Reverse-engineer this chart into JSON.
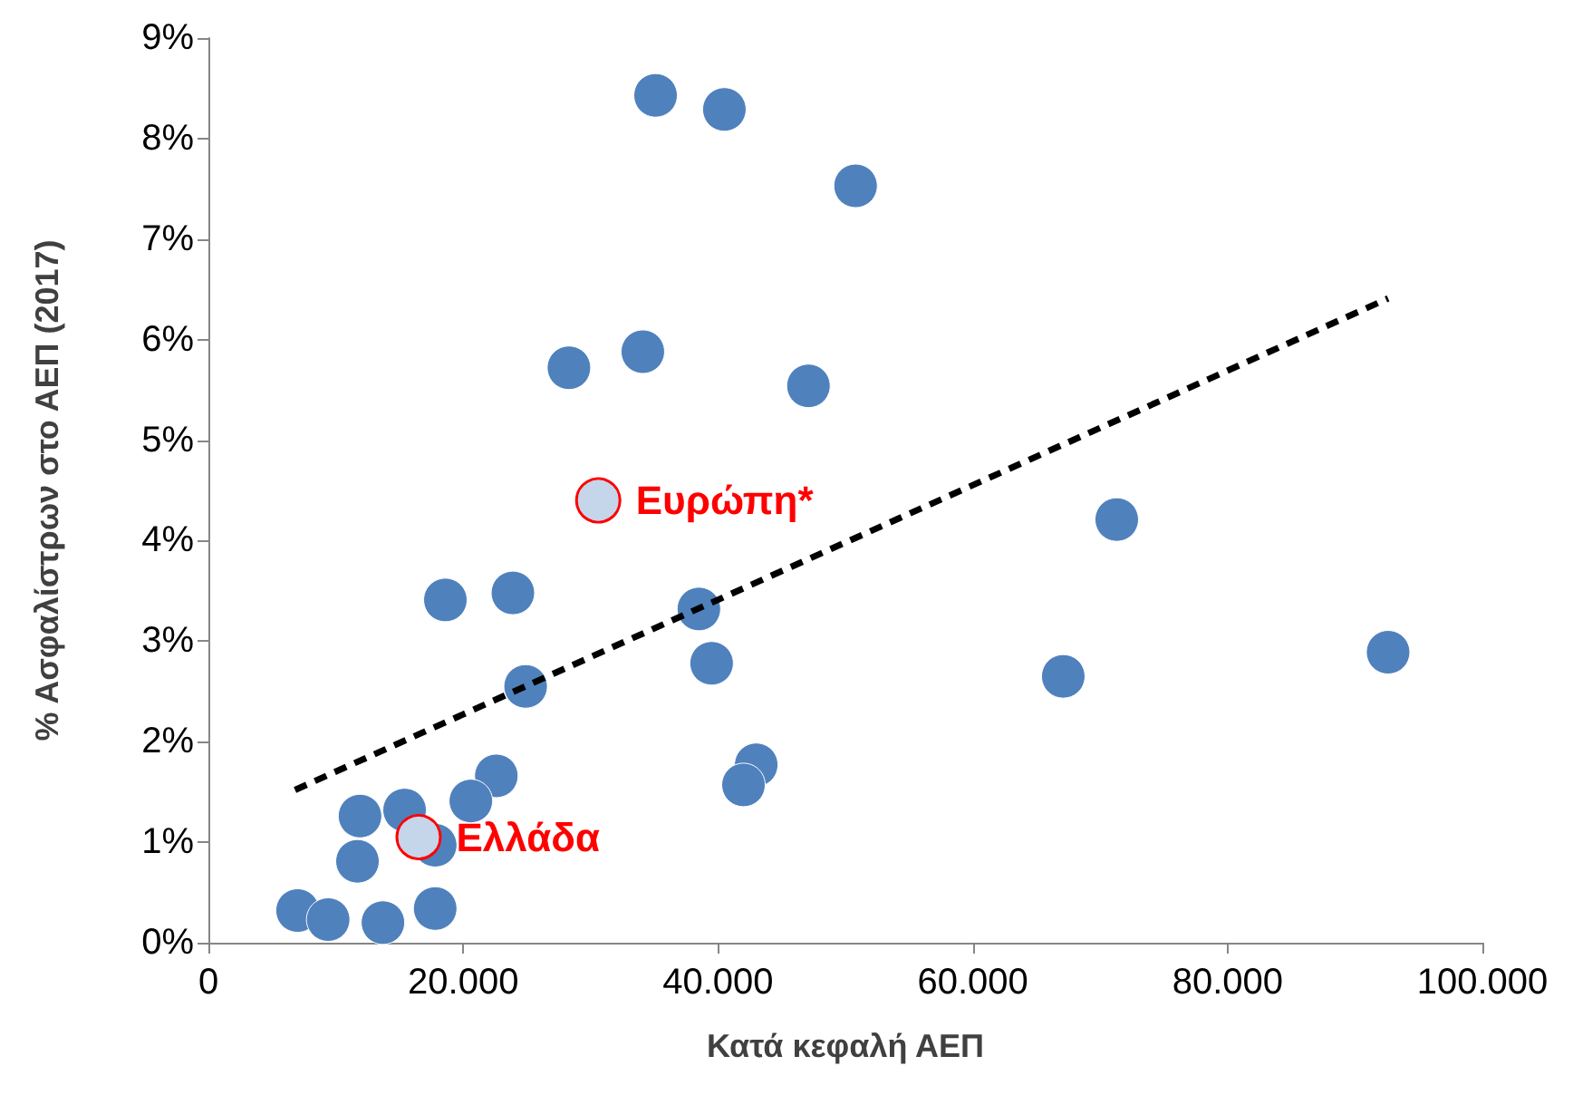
{
  "chart_data": {
    "type": "scatter",
    "xlabel": "Κατά κεφαλή ΑΕΠ",
    "ylabel": "% Ασφαλίστρων στο ΑΕΠ (2017)",
    "xlim": [
      0,
      100000
    ],
    "ylim": [
      0,
      9
    ],
    "xticks": [
      {
        "value": 0,
        "label": "0"
      },
      {
        "value": 20000,
        "label": "20.000"
      },
      {
        "value": 40000,
        "label": "40.000"
      },
      {
        "value": 60000,
        "label": "60.000"
      },
      {
        "value": 80000,
        "label": "80.000"
      },
      {
        "value": 100000,
        "label": "100.000"
      }
    ],
    "yticks": [
      {
        "value": 0,
        "label": "0%"
      },
      {
        "value": 1,
        "label": "1%"
      },
      {
        "value": 2,
        "label": "2%"
      },
      {
        "value": 3,
        "label": "3%"
      },
      {
        "value": 4,
        "label": "4%"
      },
      {
        "value": 5,
        "label": "5%"
      },
      {
        "value": 6,
        "label": "6%"
      },
      {
        "value": 7,
        "label": "7%"
      },
      {
        "value": 8,
        "label": "8%"
      },
      {
        "value": 9,
        "label": "9%"
      }
    ],
    "grid": false,
    "legend": false,
    "marker": "circle",
    "series": [
      {
        "color": "#4f81bd",
        "x": [
          35100,
          40500,
          50800,
          28300,
          34100,
          47100,
          71300,
          92600,
          67100,
          18600,
          23900,
          38500,
          39500,
          24900,
          43000,
          42000,
          22600,
          20600,
          11900,
          15400,
          17800,
          11700,
          7000,
          9400,
          13700,
          17800
        ],
        "values": [
          8.43,
          8.29,
          7.53,
          5.72,
          5.88,
          5.54,
          4.21,
          2.89,
          2.65,
          3.41,
          3.48,
          3.32,
          2.78,
          2.55,
          1.77,
          1.57,
          1.66,
          1.41,
          1.26,
          1.32,
          0.97,
          0.81,
          0.32,
          0.23,
          0.2,
          0.34
        ]
      },
      {
        "type": "line",
        "color": "#000000",
        "line_style": "dashed",
        "marker": "none",
        "x": [
          6800,
          92600
        ],
        "values": [
          1.52,
          6.41
        ]
      },
      {
        "name": "Ευρώπη*",
        "color": "#c5d5ea",
        "x": [
          30600
        ],
        "values": [
          4.4
        ]
      },
      {
        "name": "Ελλάδα",
        "color": "#c5d5ea",
        "x": [
          16500
        ],
        "values": [
          1.05
        ]
      }
    ]
  }
}
